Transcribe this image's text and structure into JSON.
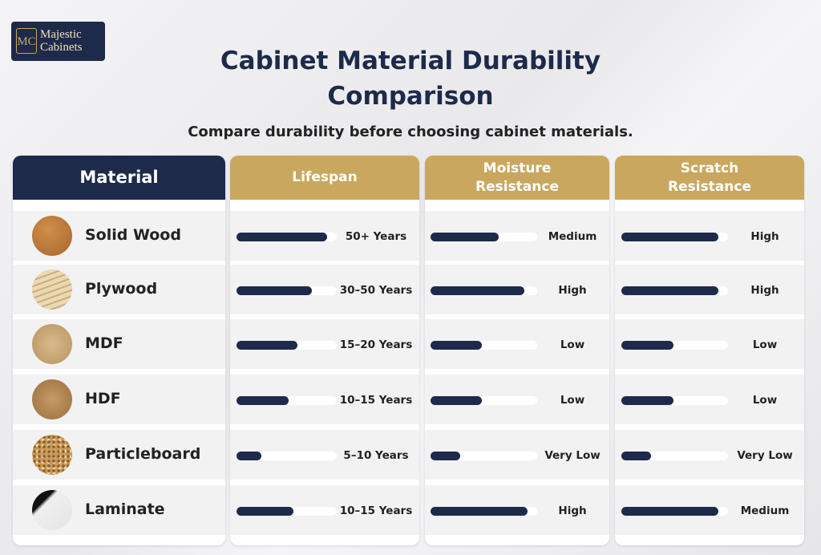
{
  "logo": {
    "monogram": "MC",
    "line1": "Majestic",
    "line2": "Cabinets"
  },
  "header": {
    "title": "Cabinet Material Durability Comparison",
    "subtitle": "Compare durability before choosing cabinet materials."
  },
  "table": {
    "columns": [
      "Material",
      "Lifespan",
      "Moisture Resistance",
      "Scratch Resistance"
    ],
    "rows": [
      {
        "material": "Solid Wood",
        "lifespan": {
          "label": "50+ Years",
          "level": 90
        },
        "moisture": {
          "label": "Medium",
          "level": 64
        },
        "scratch": {
          "label": "High",
          "level": 91
        }
      },
      {
        "material": "Plywood",
        "lifespan": {
          "label": "30–50 Years",
          "level": 75
        },
        "moisture": {
          "label": "High",
          "level": 88
        },
        "scratch": {
          "label": "High",
          "level": 91
        }
      },
      {
        "material": "MDF",
        "lifespan": {
          "label": "15–20 Years",
          "level": 61
        },
        "moisture": {
          "label": "Low",
          "level": 48
        },
        "scratch": {
          "label": "Low",
          "level": 49
        }
      },
      {
        "material": "HDF",
        "lifespan": {
          "label": "10–15 Years",
          "level": 52
        },
        "moisture": {
          "label": "Low",
          "level": 48
        },
        "scratch": {
          "label": "Low",
          "level": 49
        }
      },
      {
        "material": "Particleboard",
        "lifespan": {
          "label": "5–10 Years",
          "level": 25
        },
        "moisture": {
          "label": "Very Low",
          "level": 28
        },
        "scratch": {
          "label": "Very Low",
          "level": 28
        }
      },
      {
        "material": "Laminate",
        "lifespan": {
          "label": "10–15 Years",
          "level": 57
        },
        "moisture": {
          "label": "High",
          "level": 91
        },
        "scratch": {
          "label": "Medium",
          "level": 91
        }
      }
    ]
  }
}
